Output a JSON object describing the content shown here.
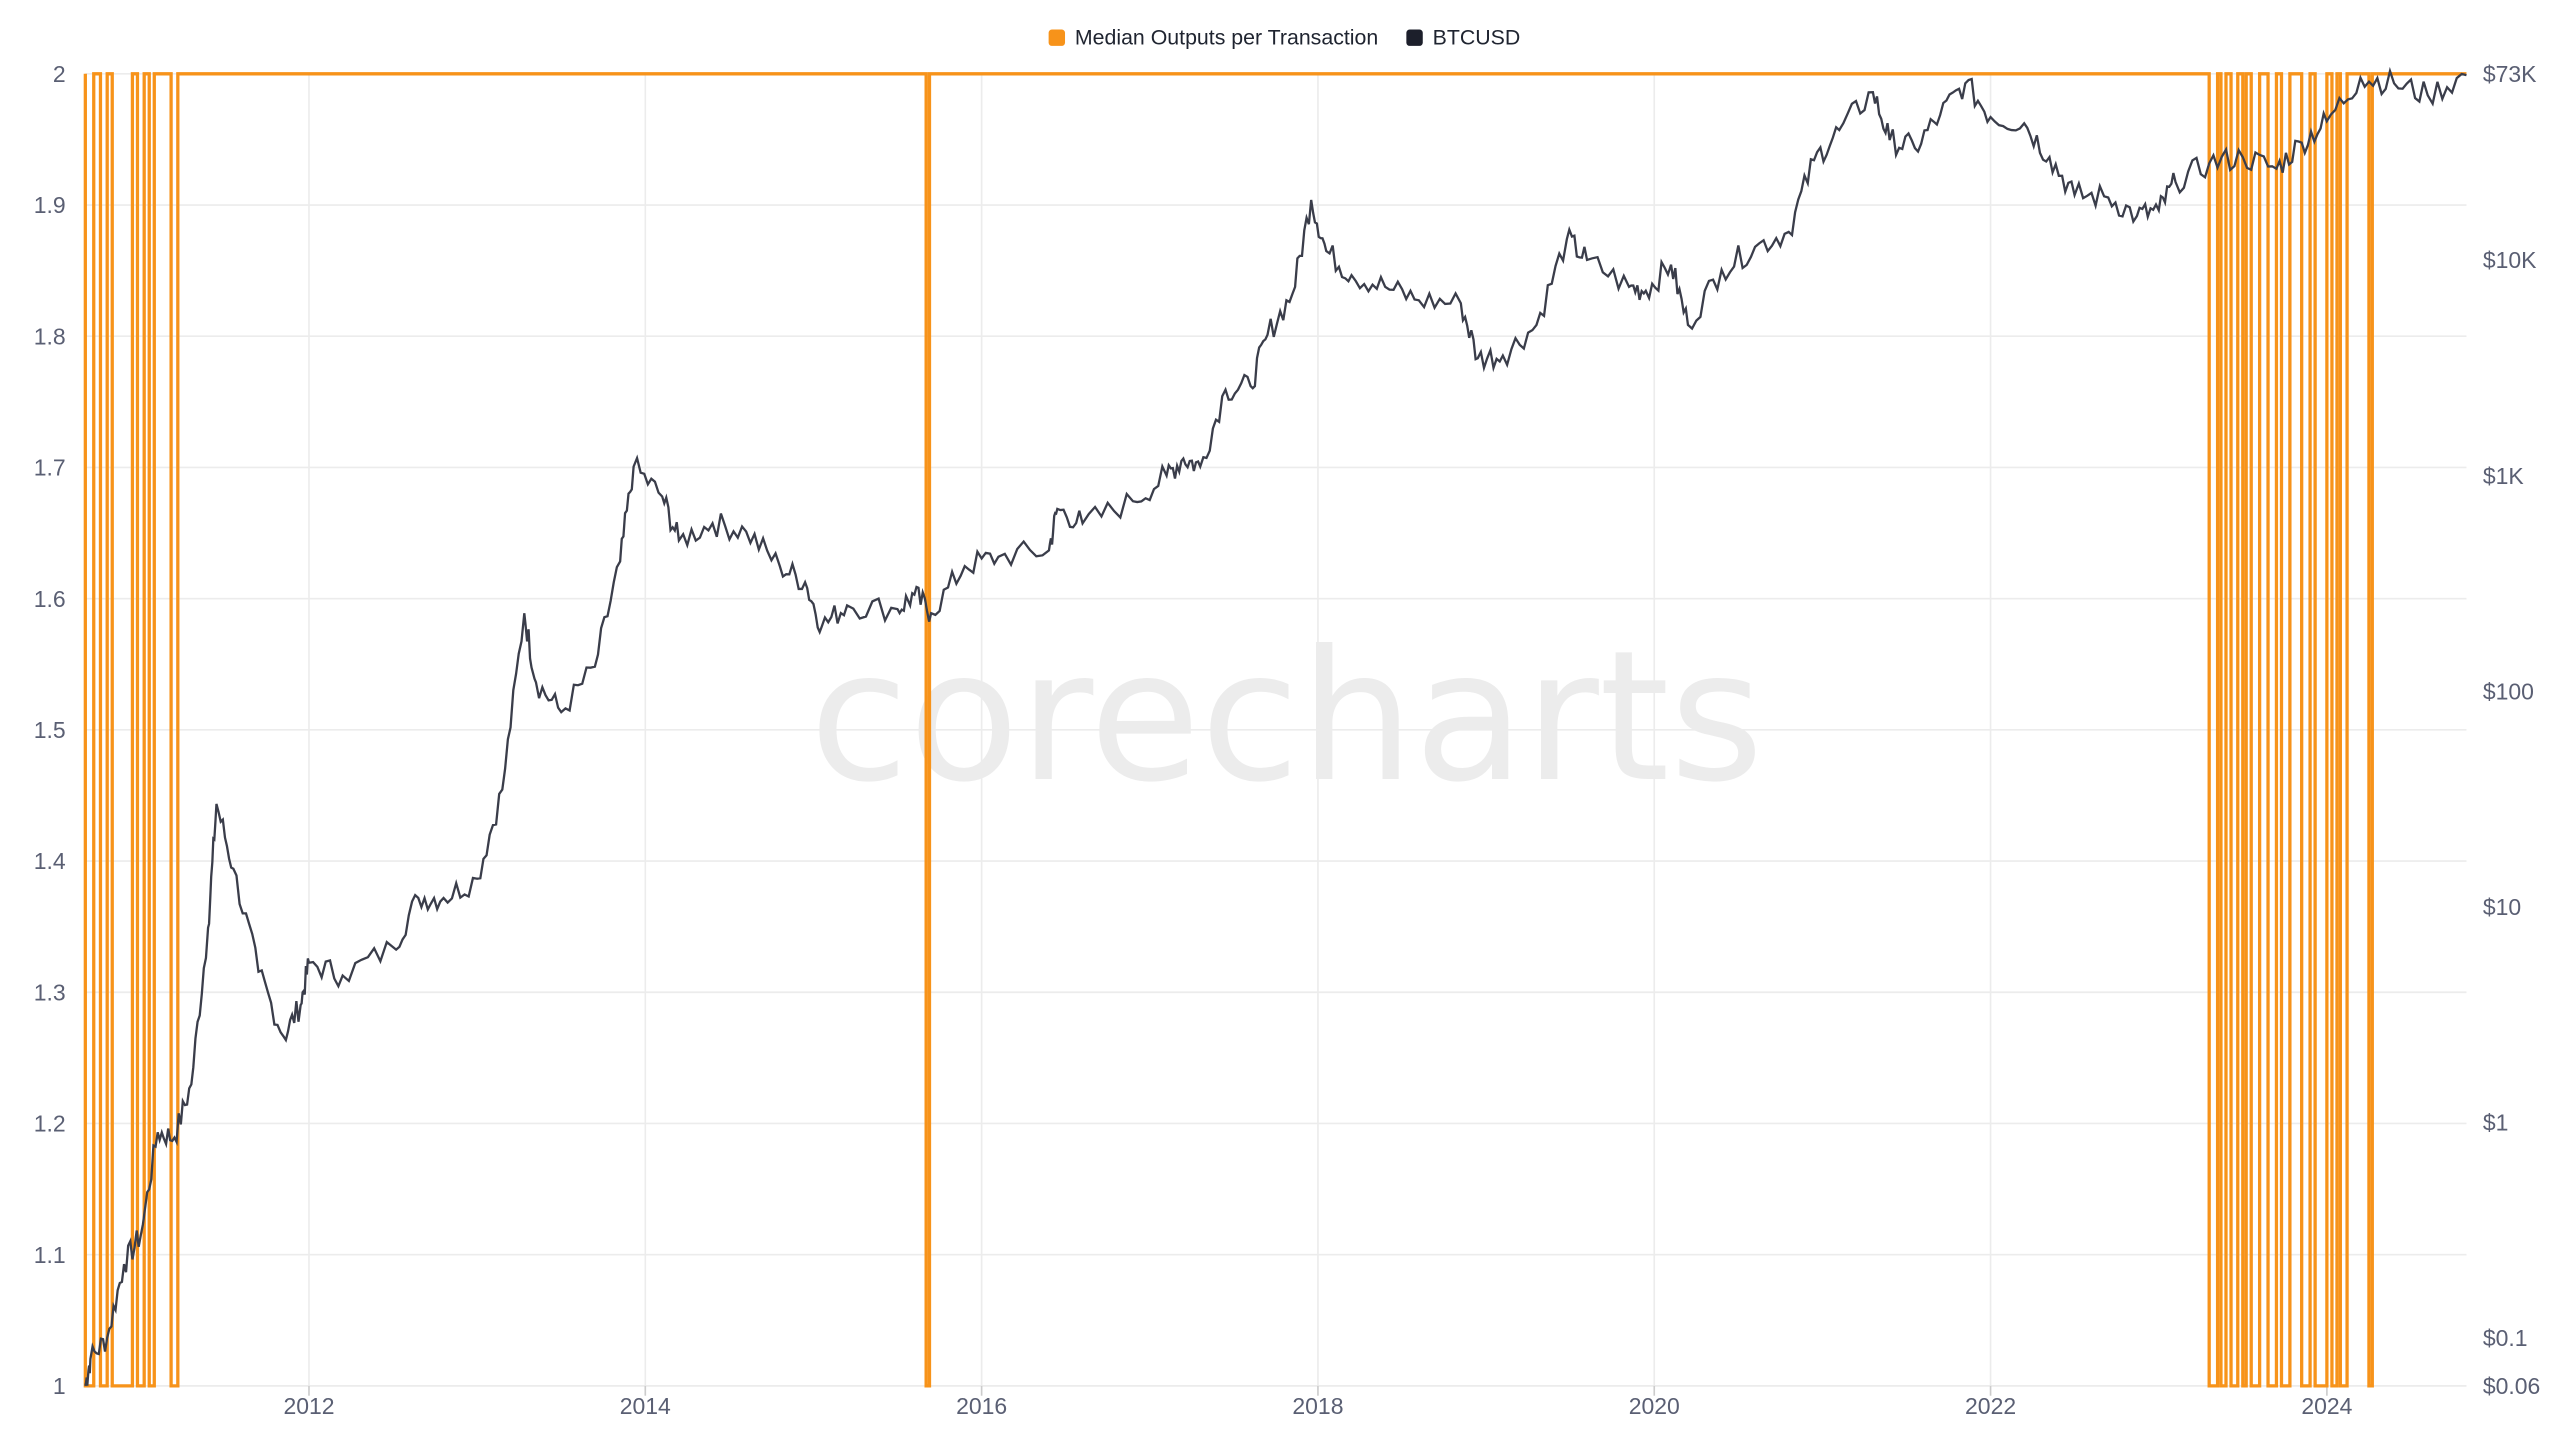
{
  "chart_data": {
    "type": "line",
    "title": "",
    "watermark": "corecharts",
    "legend": {
      "placement": "top-center",
      "items": [
        {
          "name": "Median Outputs per Transaction",
          "color": "#f7931a"
        },
        {
          "name": "BTCUSD",
          "color": "#1c1f2b"
        }
      ]
    },
    "x_ticks": [
      "2012",
      "2014",
      "2016",
      "2018",
      "2020",
      "2022",
      "2024"
    ],
    "x_tick_values": [
      2012,
      2014,
      2016,
      2018,
      2020,
      2022,
      2024
    ],
    "xlim": [
      2010.67,
      2024.83
    ],
    "y_left": {
      "ticks": [
        "1",
        "1.1",
        "1.2",
        "1.3",
        "1.4",
        "1.5",
        "1.6",
        "1.7",
        "1.8",
        "1.9",
        "2"
      ],
      "ylim": [
        1,
        2
      ]
    },
    "y_right": {
      "scale": "log",
      "ticks": [
        "$0.06",
        "$0.1",
        "$1",
        "$10",
        "$100",
        "$1K",
        "$10K",
        "$73K"
      ],
      "tick_values": [
        0.06,
        0.1,
        1,
        10,
        100,
        1000,
        10000,
        73000
      ],
      "ylim": [
        0.06,
        73000
      ]
    },
    "series": [
      {
        "name": "Median Outputs per Transaction",
        "axis": "left",
        "default_value": 2,
        "low_value": 1,
        "low_intervals": [
          [
            2010.67,
            2010.72
          ],
          [
            2010.76,
            2010.8
          ],
          [
            2010.83,
            2010.95
          ],
          [
            2010.98,
            2011.02
          ],
          [
            2011.05,
            2011.08
          ],
          [
            2011.18,
            2011.22
          ],
          [
            2015.67,
            2015.69
          ],
          [
            2023.3,
            2023.35
          ],
          [
            2023.37,
            2023.4
          ],
          [
            2023.43,
            2023.47
          ],
          [
            2023.5,
            2023.52
          ],
          [
            2023.55,
            2023.6
          ],
          [
            2023.65,
            2023.7
          ],
          [
            2023.73,
            2023.78
          ],
          [
            2023.85,
            2023.9
          ],
          [
            2023.93,
            2024.0
          ],
          [
            2024.03,
            2024.06
          ],
          [
            2024.08,
            2024.12
          ],
          [
            2024.25,
            2024.27
          ]
        ]
      },
      {
        "name": "BTCUSD",
        "axis": "right",
        "points": [
          [
            2010.67,
            0.06
          ],
          [
            2010.7,
            0.08
          ],
          [
            2010.8,
            0.1
          ],
          [
            2010.9,
            0.22
          ],
          [
            2011.0,
            0.3
          ],
          [
            2011.1,
            0.9
          ],
          [
            2011.2,
            0.85
          ],
          [
            2011.3,
            1.5
          ],
          [
            2011.4,
            8
          ],
          [
            2011.45,
            30
          ],
          [
            2011.55,
            15
          ],
          [
            2011.7,
            5
          ],
          [
            2011.85,
            2.5
          ],
          [
            2011.95,
            3.5
          ],
          [
            2012.0,
            5.5
          ],
          [
            2012.2,
            4.8
          ],
          [
            2012.5,
            6.5
          ],
          [
            2012.65,
            11
          ],
          [
            2012.8,
            11
          ],
          [
            2013.0,
            13.5
          ],
          [
            2013.15,
            35
          ],
          [
            2013.28,
            230
          ],
          [
            2013.35,
            110
          ],
          [
            2013.5,
            80
          ],
          [
            2013.7,
            130
          ],
          [
            2013.85,
            400
          ],
          [
            2013.93,
            1100
          ],
          [
            2014.1,
            800
          ],
          [
            2014.2,
            500
          ],
          [
            2014.4,
            600
          ],
          [
            2014.6,
            550
          ],
          [
            2014.8,
            380
          ],
          [
            2014.95,
            320
          ],
          [
            2015.05,
            200
          ],
          [
            2015.2,
            250
          ],
          [
            2015.5,
            240
          ],
          [
            2015.6,
            280
          ],
          [
            2015.7,
            230
          ],
          [
            2015.9,
            380
          ],
          [
            2016.1,
            420
          ],
          [
            2016.4,
            450
          ],
          [
            2016.45,
            700
          ],
          [
            2016.6,
            600
          ],
          [
            2016.9,
            760
          ],
          [
            2017.1,
            1000
          ],
          [
            2017.2,
            1200
          ],
          [
            2017.3,
            1100
          ],
          [
            2017.45,
            2500
          ],
          [
            2017.6,
            2600
          ],
          [
            2017.7,
            4500
          ],
          [
            2017.85,
            7000
          ],
          [
            2017.96,
            19000
          ],
          [
            2018.05,
            11000
          ],
          [
            2018.2,
            8500
          ],
          [
            2018.4,
            7500
          ],
          [
            2018.6,
            6500
          ],
          [
            2018.85,
            6300
          ],
          [
            2018.95,
            3500
          ],
          [
            2019.1,
            3600
          ],
          [
            2019.3,
            5000
          ],
          [
            2019.48,
            12500
          ],
          [
            2019.6,
            10000
          ],
          [
            2019.85,
            7500
          ],
          [
            2019.95,
            7200
          ],
          [
            2020.1,
            9500
          ],
          [
            2020.2,
            5000
          ],
          [
            2020.4,
            9000
          ],
          [
            2020.6,
            11500
          ],
          [
            2020.8,
            13500
          ],
          [
            2020.95,
            29000
          ],
          [
            2021.1,
            40000
          ],
          [
            2021.3,
            60000
          ],
          [
            2021.4,
            36000
          ],
          [
            2021.55,
            33000
          ],
          [
            2021.7,
            47000
          ],
          [
            2021.85,
            66000
          ],
          [
            2022.0,
            46000
          ],
          [
            2022.2,
            43000
          ],
          [
            2022.35,
            30000
          ],
          [
            2022.5,
            20000
          ],
          [
            2022.7,
            19500
          ],
          [
            2022.87,
            16000
          ],
          [
            2023.0,
            17000
          ],
          [
            2023.1,
            23000
          ],
          [
            2023.3,
            28000
          ],
          [
            2023.5,
            30000
          ],
          [
            2023.7,
            26500
          ],
          [
            2023.85,
            35000
          ],
          [
            2024.0,
            44000
          ],
          [
            2024.2,
            70000
          ],
          [
            2024.4,
            66000
          ],
          [
            2024.6,
            58000
          ],
          [
            2024.83,
            72000
          ]
        ]
      }
    ]
  }
}
